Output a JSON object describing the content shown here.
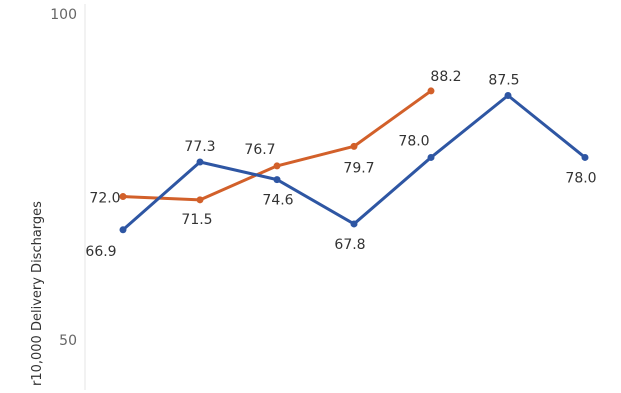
{
  "chart_data": {
    "type": "line",
    "title": "",
    "xlabel": "",
    "ylabel": "r10,000 Delivery Discharges",
    "ylim": [
      50,
      100
    ],
    "yticks": [
      50,
      100
    ],
    "grid": false,
    "x": [
      1,
      2,
      3,
      4,
      5,
      6,
      7
    ],
    "series": [
      {
        "color": "#2E56A3",
        "values": [
          66.9,
          77.3,
          74.6,
          67.8,
          78.0,
          87.5,
          78.0
        ]
      },
      {
        "color": "#D2602A",
        "values": [
          72.0,
          71.5,
          76.7,
          79.7,
          88.2,
          null,
          null
        ]
      }
    ]
  }
}
